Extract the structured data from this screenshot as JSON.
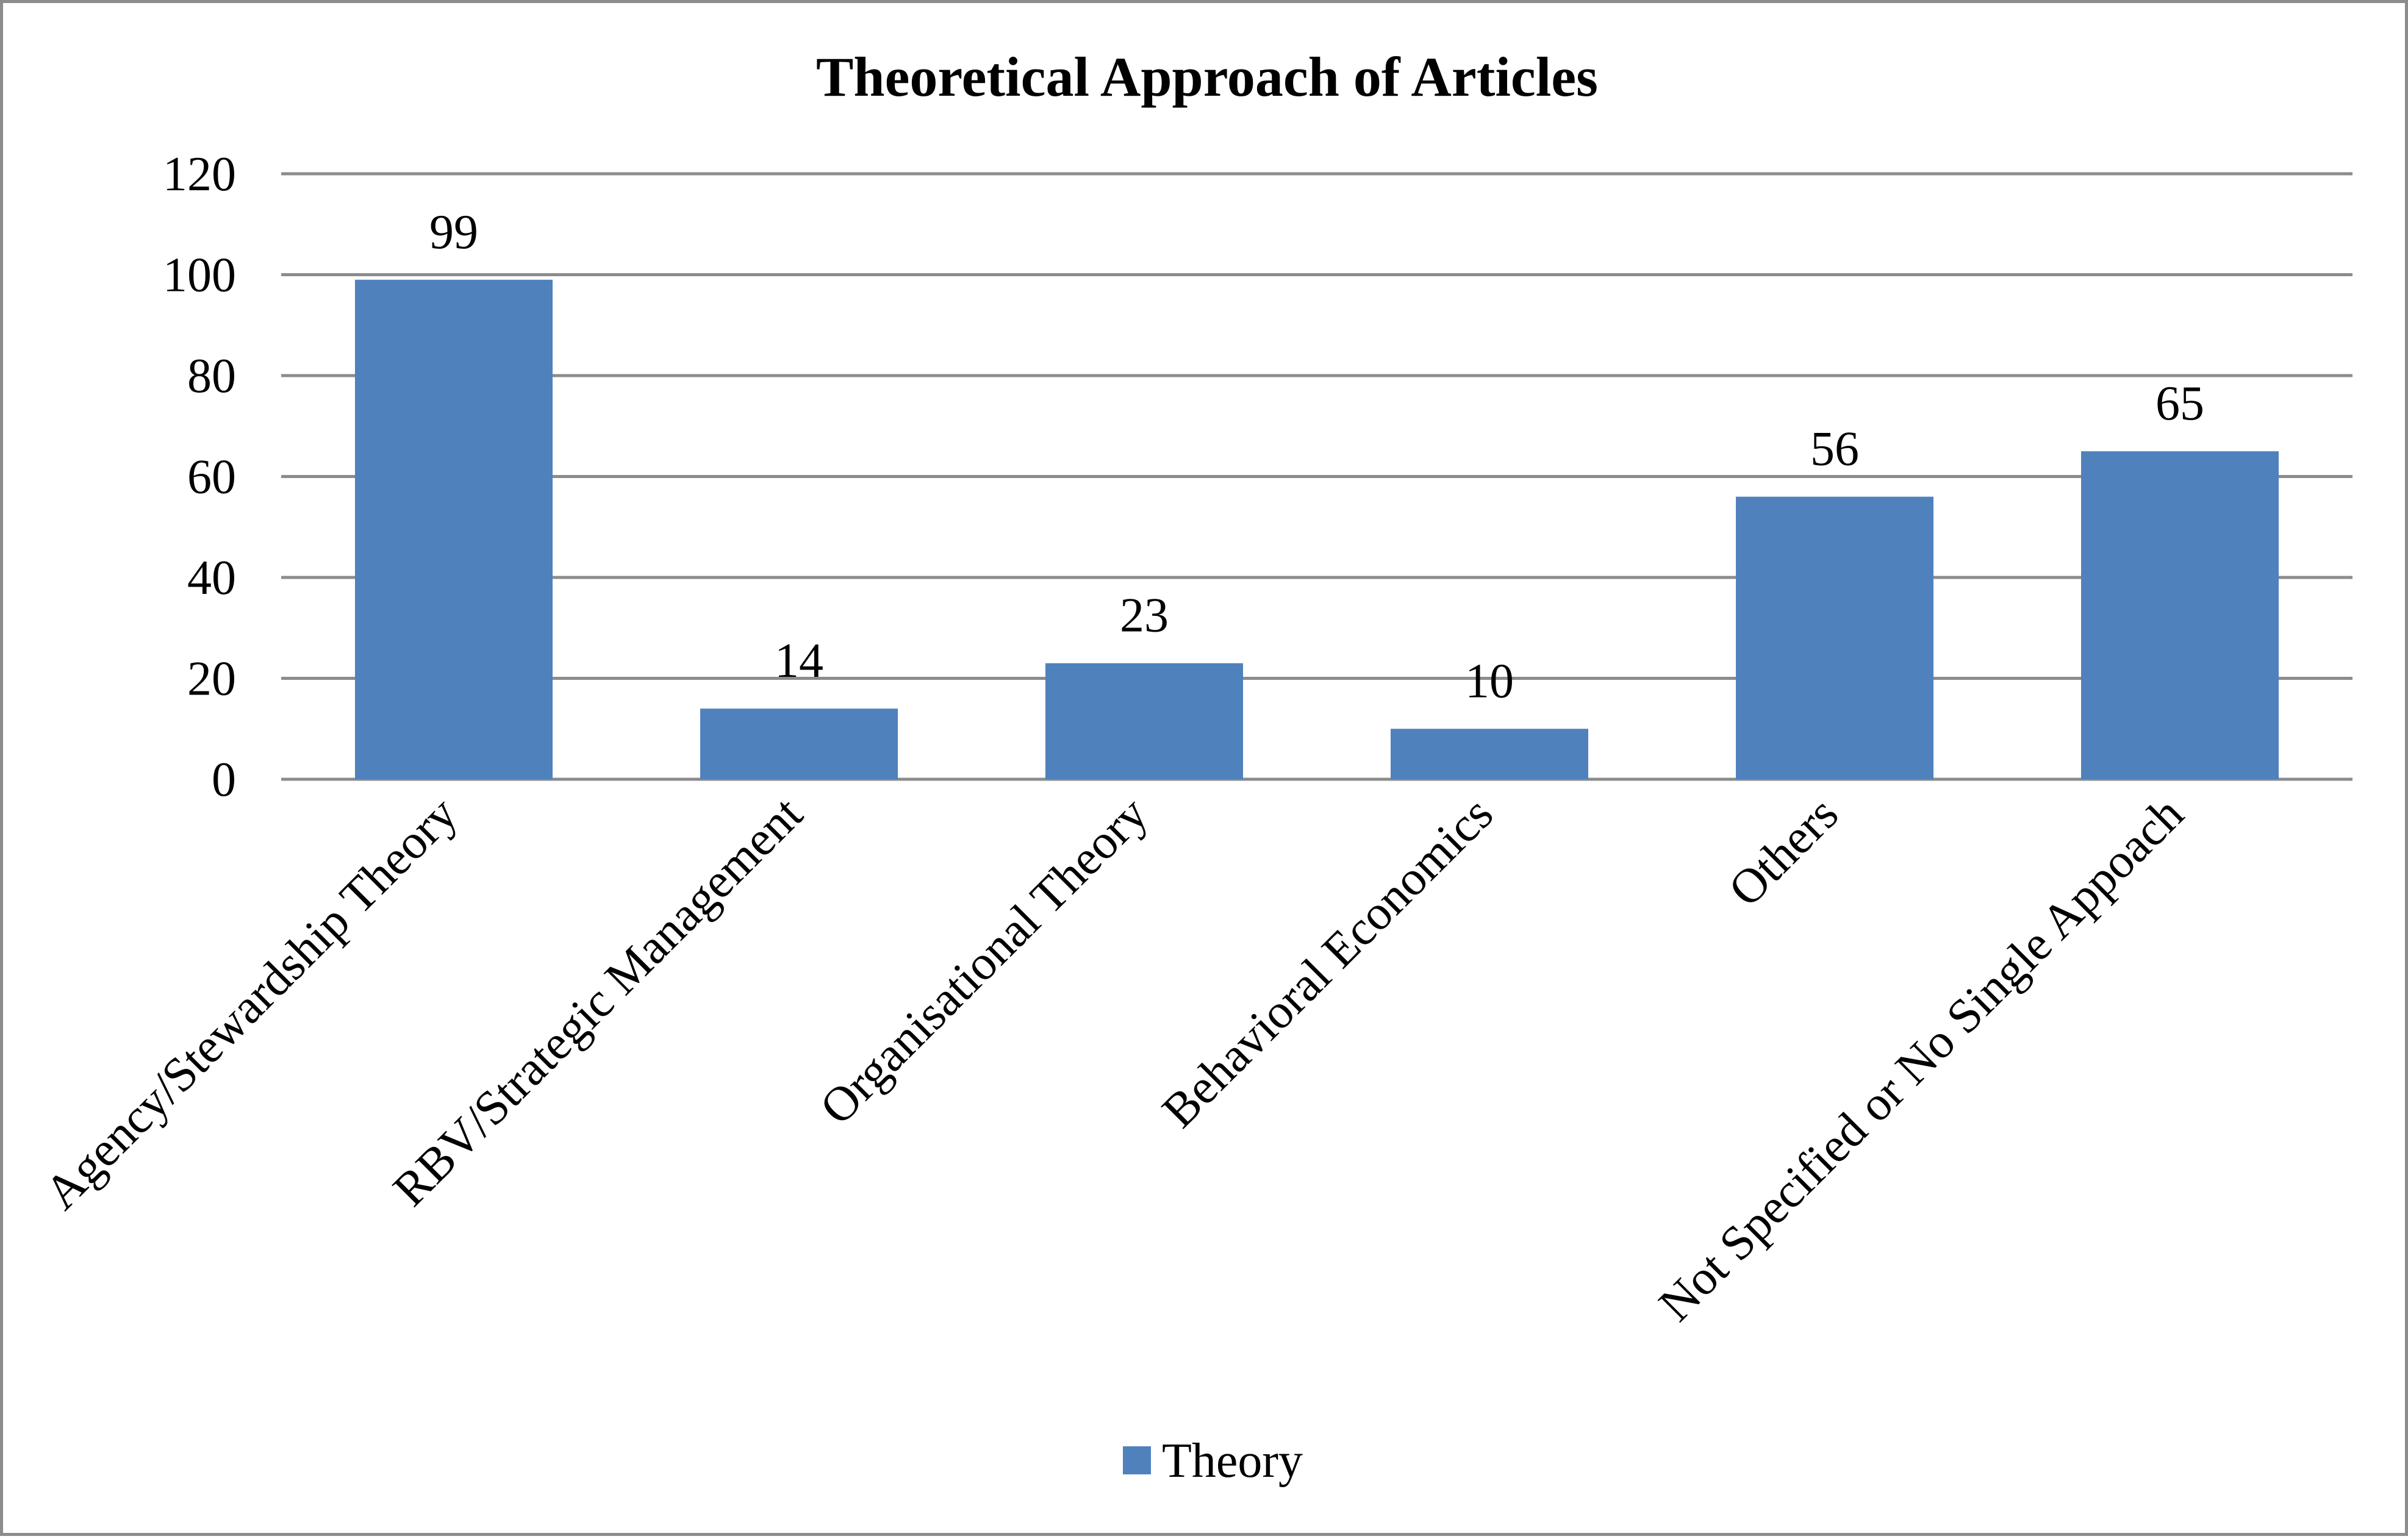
{
  "chart_data": {
    "type": "bar",
    "title": "Theoretical Approach of Articles",
    "categories": [
      "Agency/Stewardship Theory",
      "RBV/Strategic Management",
      "Organisational Theory",
      "Behavioral Economics",
      "Others",
      "Not Specified or No Single Appoach"
    ],
    "series": [
      {
        "name": "Theory",
        "values": [
          99,
          14,
          23,
          10,
          56,
          65
        ],
        "color": "#4f81bd"
      }
    ],
    "ylim": [
      0,
      120
    ],
    "yticks": [
      0,
      20,
      40,
      60,
      80,
      100,
      120
    ],
    "xlabel": "",
    "ylabel": "",
    "grid": true,
    "legend": "bottom-center",
    "data_labels": true,
    "gridline_color": "#8c8c8c"
  }
}
